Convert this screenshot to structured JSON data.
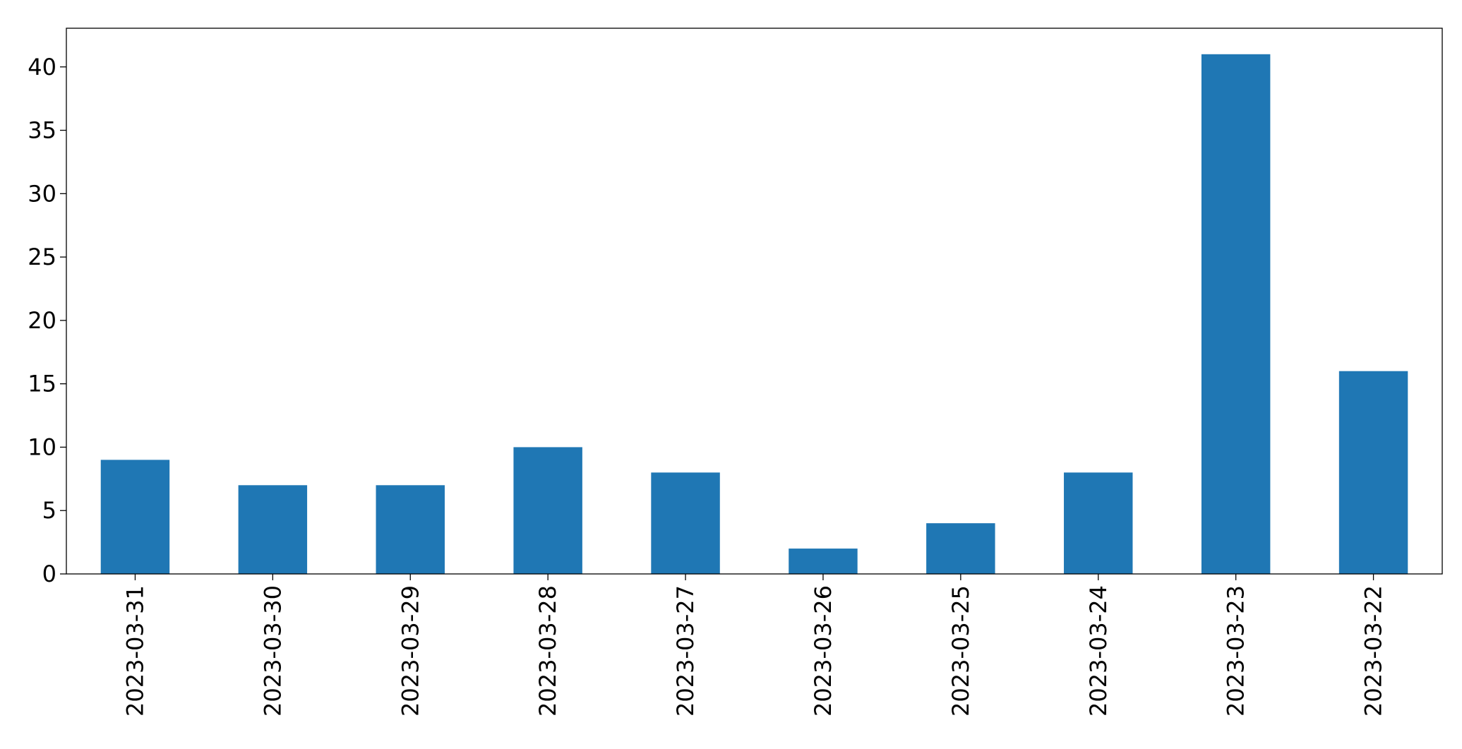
{
  "chart_data": {
    "type": "bar",
    "categories": [
      "2023-03-31",
      "2023-03-30",
      "2023-03-29",
      "2023-03-28",
      "2023-03-27",
      "2023-03-26",
      "2023-03-25",
      "2023-03-24",
      "2023-03-23",
      "2023-03-22"
    ],
    "values": [
      9,
      7,
      7,
      10,
      8,
      2,
      4,
      8,
      41,
      16
    ],
    "color": "#1f77b4",
    "ylim": [
      0,
      43.05
    ],
    "yticks": [
      0,
      5,
      10,
      15,
      20,
      25,
      30,
      35,
      40
    ],
    "grid": false
  }
}
